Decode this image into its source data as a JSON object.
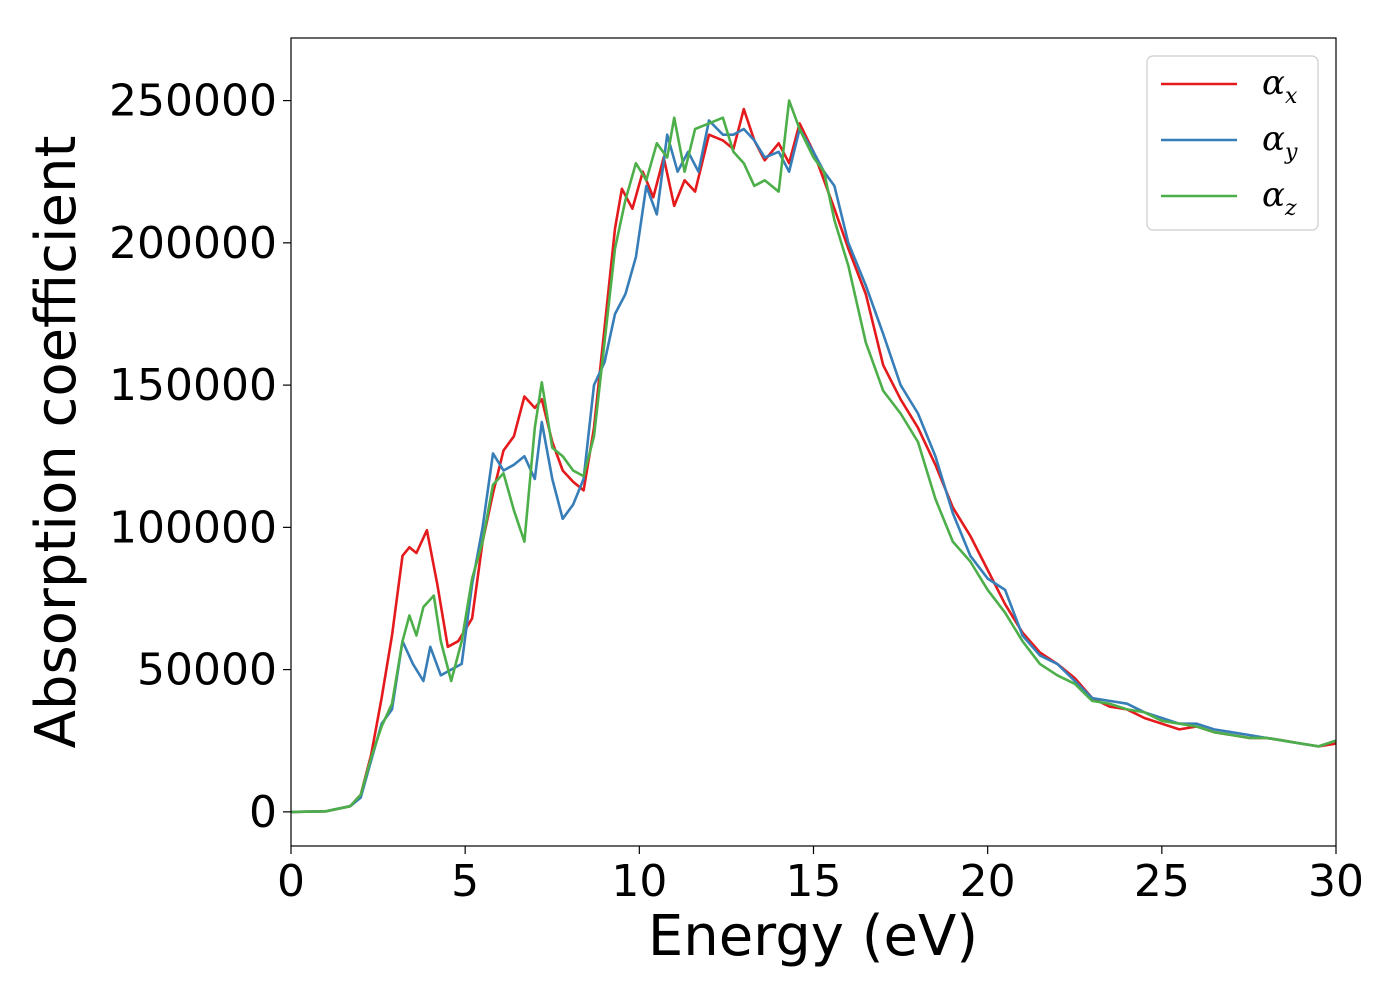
{
  "chart_data": {
    "type": "line",
    "title": "",
    "xlabel": "Energy (eV)",
    "ylabel": "Absorption coefficient",
    "xlim": [
      0,
      30
    ],
    "ylim": [
      -12000,
      272000
    ],
    "xticks": [
      "0",
      "5",
      "10",
      "15",
      "20",
      "25",
      "30"
    ],
    "yticks": [
      "0",
      "50000",
      "100000",
      "150000",
      "200000",
      "250000"
    ],
    "grid": false,
    "legend_position": "top-right",
    "series": [
      {
        "name": "α",
        "subscript": "x",
        "color": "#e41a1c",
        "x": [
          0,
          1,
          1.7,
          2.0,
          2.3,
          2.6,
          2.9,
          3.2,
          3.4,
          3.6,
          3.9,
          4.2,
          4.5,
          4.8,
          5.2,
          5.5,
          5.8,
          6.1,
          6.4,
          6.7,
          7.0,
          7.2,
          7.5,
          7.8,
          8.1,
          8.4,
          8.7,
          9.0,
          9.3,
          9.5,
          9.8,
          10.1,
          10.4,
          10.7,
          11.0,
          11.3,
          11.6,
          12.0,
          12.4,
          12.7,
          13.0,
          13.3,
          13.6,
          14.0,
          14.3,
          14.6,
          15.0,
          15.3,
          15.6,
          16.0,
          16.5,
          17.0,
          17.5,
          18.0,
          18.5,
          19.0,
          19.5,
          20.0,
          20.5,
          21.0,
          21.5,
          22.0,
          22.5,
          23.0,
          23.5,
          24.0,
          24.5,
          25.0,
          25.5,
          26.0,
          26.5,
          27.0,
          27.5,
          28.0,
          28.5,
          29.0,
          29.5,
          30.0
        ],
        "y": [
          0,
          200,
          2000,
          6000,
          20000,
          40000,
          62000,
          90000,
          93000,
          91000,
          99000,
          80000,
          58000,
          60000,
          68000,
          95000,
          112000,
          127000,
          132000,
          146000,
          142000,
          145000,
          130000,
          120000,
          116000,
          113000,
          135000,
          170000,
          205000,
          219000,
          212000,
          225000,
          216000,
          230000,
          213000,
          222000,
          218000,
          238000,
          236000,
          233000,
          247000,
          236000,
          229000,
          235000,
          228000,
          242000,
          232000,
          222000,
          212000,
          198000,
          182000,
          157000,
          145000,
          135000,
          122000,
          107000,
          97000,
          85000,
          73000,
          63000,
          56000,
          52000,
          47000,
          40000,
          37000,
          36000,
          33000,
          31000,
          29000,
          30000,
          28000,
          27000,
          26000,
          26000,
          25000,
          24000,
          23000,
          24000
        ]
      },
      {
        "name": "α",
        "subscript": "y",
        "color": "#377eb8",
        "x": [
          0,
          1,
          1.7,
          2.0,
          2.3,
          2.6,
          2.9,
          3.2,
          3.5,
          3.8,
          4.0,
          4.3,
          4.6,
          4.9,
          5.2,
          5.5,
          5.8,
          6.1,
          6.4,
          6.7,
          7.0,
          7.2,
          7.5,
          7.8,
          8.1,
          8.4,
          8.7,
          9.0,
          9.3,
          9.6,
          9.9,
          10.2,
          10.5,
          10.8,
          11.1,
          11.4,
          11.7,
          12.0,
          12.4,
          12.7,
          13.0,
          13.3,
          13.6,
          14.0,
          14.3,
          14.6,
          15.0,
          15.3,
          15.6,
          16.0,
          16.5,
          17.0,
          17.5,
          18.0,
          18.5,
          19.0,
          19.5,
          20.0,
          20.5,
          21.0,
          21.5,
          22.0,
          22.5,
          23.0,
          23.5,
          24.0,
          24.5,
          25.0,
          25.5,
          26.0,
          26.5,
          27.0,
          27.5,
          28.0,
          28.5,
          29.0,
          29.5,
          30.0
        ],
        "y": [
          0,
          200,
          2000,
          5000,
          18000,
          31000,
          36000,
          60000,
          52000,
          46000,
          58000,
          48000,
          50000,
          52000,
          80000,
          100000,
          126000,
          120000,
          122000,
          125000,
          117000,
          137000,
          117000,
          103000,
          108000,
          117000,
          150000,
          158000,
          175000,
          182000,
          195000,
          220000,
          210000,
          238000,
          225000,
          232000,
          225000,
          243000,
          238000,
          238000,
          240000,
          236000,
          230000,
          232000,
          225000,
          240000,
          232000,
          225000,
          220000,
          200000,
          185000,
          168000,
          150000,
          140000,
          125000,
          105000,
          90000,
          82000,
          78000,
          62000,
          55000,
          52000,
          46000,
          40000,
          39000,
          38000,
          35000,
          33000,
          31000,
          31000,
          29000,
          28000,
          27000,
          26000,
          25000,
          24000,
          23000,
          25000
        ]
      },
      {
        "name": "α",
        "subscript": "z",
        "color": "#4daf4a",
        "x": [
          0,
          1,
          1.7,
          2.0,
          2.3,
          2.6,
          2.9,
          3.2,
          3.4,
          3.6,
          3.8,
          4.1,
          4.3,
          4.6,
          4.9,
          5.2,
          5.5,
          5.8,
          6.1,
          6.4,
          6.7,
          7.0,
          7.2,
          7.5,
          7.8,
          8.1,
          8.4,
          8.7,
          9.0,
          9.3,
          9.6,
          9.9,
          10.2,
          10.5,
          10.8,
          11.0,
          11.3,
          11.6,
          12.0,
          12.4,
          12.7,
          13.0,
          13.3,
          13.6,
          14.0,
          14.3,
          14.6,
          15.0,
          15.3,
          15.6,
          16.0,
          16.5,
          17.0,
          17.5,
          18.0,
          18.5,
          19.0,
          19.5,
          20.0,
          20.5,
          21.0,
          21.5,
          22.0,
          22.5,
          23.0,
          23.5,
          24.0,
          24.5,
          25.0,
          25.5,
          26.0,
          26.5,
          27.0,
          27.5,
          28.0,
          28.5,
          29.0,
          29.5,
          30.0
        ],
        "y": [
          0,
          200,
          2000,
          6000,
          19000,
          30000,
          38000,
          60000,
          69000,
          62000,
          72000,
          76000,
          60000,
          46000,
          60000,
          82000,
          95000,
          115000,
          119000,
          106000,
          95000,
          135000,
          151000,
          128000,
          125000,
          120000,
          118000,
          132000,
          165000,
          198000,
          215000,
          228000,
          222000,
          235000,
          230000,
          244000,
          225000,
          240000,
          242000,
          244000,
          232000,
          228000,
          220000,
          222000,
          218000,
          250000,
          240000,
          230000,
          225000,
          208000,
          192000,
          165000,
          148000,
          140000,
          130000,
          110000,
          95000,
          88000,
          78000,
          70000,
          60000,
          52000,
          48000,
          45000,
          39000,
          38000,
          36000,
          35000,
          32000,
          31000,
          30000,
          28000,
          27000,
          26000,
          26000,
          25000,
          24000,
          23000,
          25000
        ]
      }
    ]
  }
}
